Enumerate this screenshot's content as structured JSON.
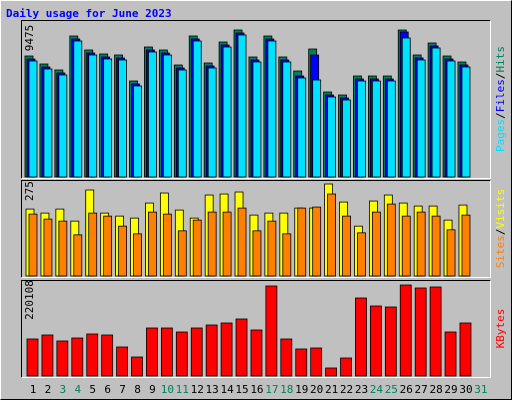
{
  "title": "Daily usage for June 2023",
  "legend_separator": "/",
  "chart_data": [
    {
      "type": "bar",
      "ylim": [
        0,
        9475
      ],
      "series": [
        {
          "name": "Hits",
          "color": "#00805c",
          "values": [
            7799,
            7283,
            6897,
            9088,
            8186,
            7928,
            7864,
            6188,
            8379,
            8186,
            7219,
            9088,
            7348,
            8701,
            9475,
            7735,
            9088,
            7735,
            6832,
            8250,
            5479,
            5285,
            6510,
            6510,
            6510,
            9475,
            7864,
            8637,
            7799,
            7412,
            null
          ]
        },
        {
          "name": "Files",
          "color": "#0000ff",
          "values": [
            7606,
            7090,
            6704,
            8895,
            7993,
            7735,
            7671,
            5995,
            8186,
            7993,
            7026,
            8895,
            7155,
            8508,
            9282,
            7542,
            8895,
            7542,
            6510,
            7864,
            5286,
            5092,
            6317,
            6317,
            6317,
            9347,
            7671,
            8444,
            7606,
            7219,
            null
          ]
        },
        {
          "name": "Pages",
          "color": "#00e0ff",
          "values": [
            7477,
            6961,
            6575,
            8766,
            7864,
            7606,
            7542,
            5866,
            8057,
            7864,
            6897,
            8766,
            7026,
            8379,
            9153,
            7413,
            8766,
            7413,
            6382,
            6253,
            5157,
            4963,
            6188,
            6188,
            6188,
            8960,
            7542,
            8315,
            7477,
            7090,
            null
          ]
        }
      ]
    },
    {
      "type": "bar",
      "ylim": [
        0,
        275
      ],
      "series": [
        {
          "name": "Visits",
          "color": "#ffff00",
          "values": [
            200,
            188,
            200,
            164,
            257,
            188,
            179,
            173,
            218,
            248,
            197,
            173,
            242,
            245,
            251,
            182,
            188,
            188,
            203,
            203,
            275,
            221,
            149,
            224,
            242,
            218,
            209,
            209,
            167,
            212,
            null
          ]
        },
        {
          "name": "Sites",
          "color": "#ff8000",
          "values": [
            185,
            170,
            164,
            123,
            188,
            179,
            149,
            126,
            191,
            185,
            135,
            167,
            191,
            191,
            203,
            135,
            164,
            126,
            203,
            206,
            245,
            179,
            129,
            191,
            215,
            179,
            191,
            179,
            138,
            182,
            null
          ]
        }
      ]
    },
    {
      "type": "bar",
      "ylim": [
        0,
        220108
      ],
      "categories": [
        "1",
        "2",
        "3",
        "4",
        "5",
        "6",
        "7",
        "8",
        "9",
        "10",
        "11",
        "12",
        "13",
        "14",
        "15",
        "16",
        "17",
        "18",
        "19",
        "20",
        "21",
        "22",
        "23",
        "24",
        "25",
        "26",
        "27",
        "28",
        "29",
        "30",
        "31"
      ],
      "category_colors": [
        "#000000",
        "#000000",
        "#00805c",
        "#00805c",
        "#000000",
        "#000000",
        "#000000",
        "#000000",
        "#000000",
        "#00805c",
        "#00805c",
        "#000000",
        "#000000",
        "#000000",
        "#000000",
        "#000000",
        "#00805c",
        "#00805c",
        "#000000",
        "#000000",
        "#000000",
        "#000000",
        "#000000",
        "#00805c",
        "#00805c",
        "#000000",
        "#000000",
        "#000000",
        "#000000",
        "#000000",
        "#00805c"
      ],
      "series": [
        {
          "name": "KBytes",
          "color": "#ff0000",
          "values": [
            89496,
            99171,
            84658,
            91914,
            101590,
            99171,
            70145,
            45957,
            116102,
            116102,
            106427,
            116102,
            123359,
            128196,
            137872,
            111265,
            217689,
            89496,
            65308,
            67726,
            19350,
            43538,
            188666,
            169316,
            166897,
            220108,
            212854,
            215273,
            106427,
            128196,
            null
          ]
        }
      ]
    }
  ]
}
